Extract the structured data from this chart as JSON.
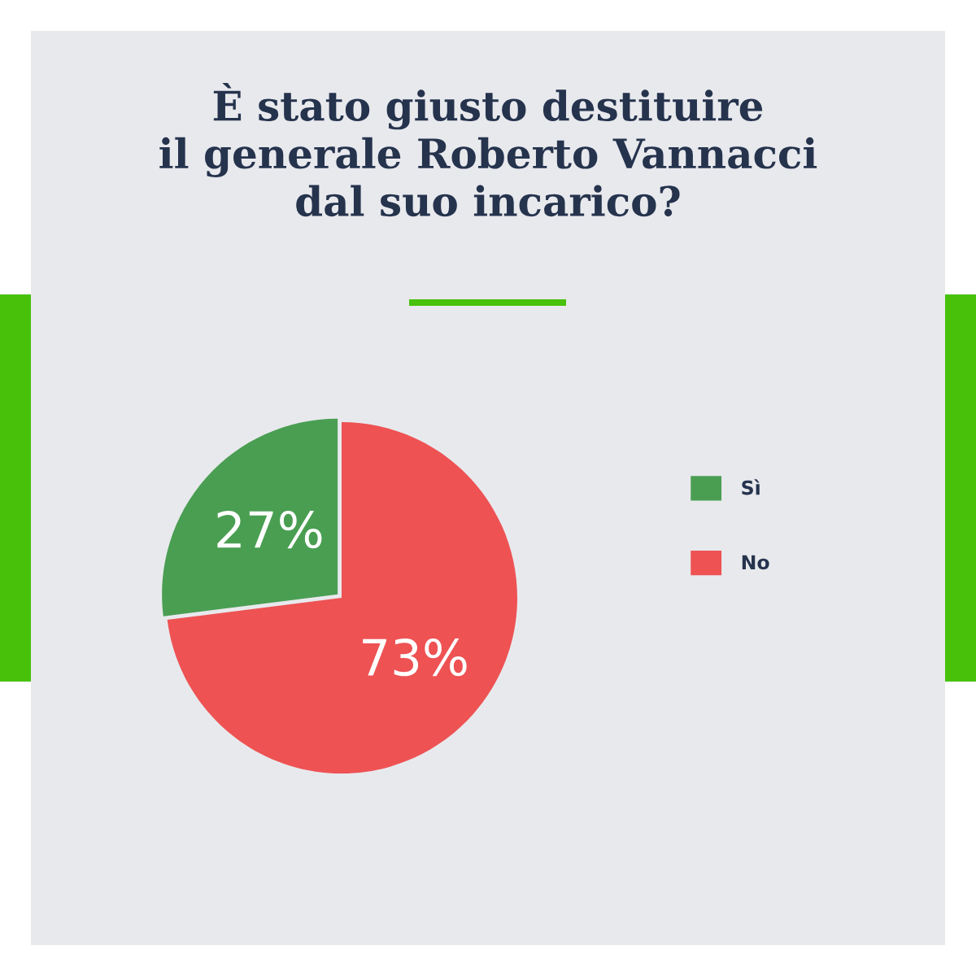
{
  "chart_data": {
    "type": "pie",
    "title": "È stato giusto destituire\nil generale Roberto Vannacci\ndal suo incarico?",
    "categories": [
      "Sì",
      "No"
    ],
    "values": [
      27,
      73
    ],
    "colors": [
      "#4a9e52",
      "#ee5253"
    ],
    "value_labels": [
      "27%",
      "73%"
    ],
    "legend": "right"
  }
}
